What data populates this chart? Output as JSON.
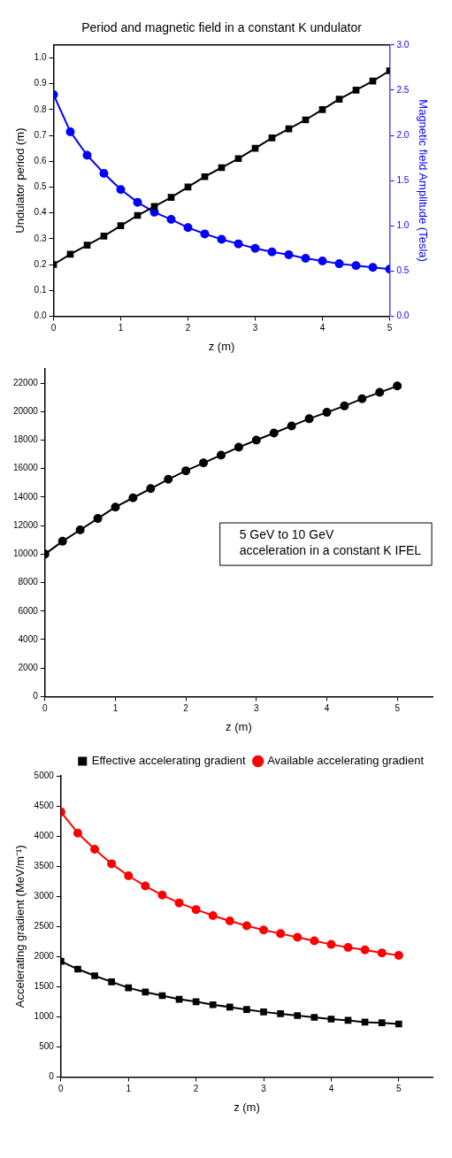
{
  "chart_data": [
    {
      "type": "line",
      "title": "Period and magnetic field in a constant K undulator",
      "xlabel": "z (m)",
      "ylabel": "Undulator period (m)",
      "y2label": "Magnetic field Amplitude (Tesla)",
      "x": [
        0,
        0.25,
        0.5,
        0.75,
        1,
        1.25,
        1.5,
        1.75,
        2,
        2.25,
        2.5,
        2.75,
        3,
        3.25,
        3.5,
        3.75,
        4,
        4.25,
        4.5,
        4.75,
        5
      ],
      "xlim": [
        0,
        5
      ],
      "xticks": [
        0,
        1,
        2,
        3,
        4,
        5
      ],
      "ylim": [
        0,
        1.05
      ],
      "yticks": [
        {
          "value": 0,
          "label": "0.0"
        },
        0.1,
        0.2,
        0.3,
        0.4,
        0.5,
        0.6,
        0.7,
        0.8,
        0.9,
        {
          "value": 1,
          "label": "1.0"
        }
      ],
      "y2lim": [
        0,
        3
      ],
      "y2ticks": [
        {
          "value": 0,
          "label": "0.0"
        },
        0.5,
        {
          "value": 1,
          "label": "1.0"
        },
        1.5,
        {
          "value": 2,
          "label": "2.0"
        },
        2.5,
        {
          "value": 3,
          "label": "3.0"
        }
      ],
      "grid": false,
      "legend": false,
      "series": [
        {
          "color": "#000000",
          "marker": "square",
          "values": [
            0.2,
            0.24,
            0.275,
            0.31,
            0.35,
            0.39,
            0.425,
            0.46,
            0.5,
            0.54,
            0.575,
            0.61,
            0.65,
            0.69,
            0.725,
            0.76,
            0.8,
            0.84,
            0.875,
            0.91,
            0.95
          ]
        },
        {
          "color": "#0000ff",
          "marker": "circle",
          "axis": "y2",
          "values": [
            2.45,
            2.04,
            1.78,
            1.58,
            1.4,
            1.26,
            1.15,
            1.07,
            0.98,
            0.91,
            0.85,
            0.8,
            0.75,
            0.71,
            0.68,
            0.64,
            0.61,
            0.58,
            0.56,
            0.54,
            0.52
          ]
        }
      ]
    },
    {
      "type": "line",
      "xlabel": "z (m)",
      "annotations": [
        "5 GeV to 10 GeV\nacceleration in a constant K IFEL"
      ],
      "x": [
        0,
        0.25,
        0.5,
        0.75,
        1,
        1.25,
        1.5,
        1.75,
        2,
        2.25,
        2.5,
        2.75,
        3,
        3.25,
        3.5,
        3.75,
        4,
        4.25,
        4.5,
        4.75,
        5
      ],
      "xlim": [
        0,
        5.5
      ],
      "xticks": [
        0,
        1,
        2,
        3,
        4,
        5
      ],
      "ylim": [
        0,
        23000
      ],
      "yticks": [
        0,
        2000,
        4000,
        6000,
        8000,
        10000,
        12000,
        14000,
        16000,
        18000,
        20000,
        22000
      ],
      "grid": false,
      "legend": false,
      "series": [
        {
          "color": "#000000",
          "marker": "circle",
          "values": [
            10000,
            10900,
            11700,
            12500,
            13300,
            13950,
            14600,
            15250,
            15850,
            16400,
            16950,
            17500,
            18000,
            18500,
            19000,
            19500,
            19950,
            20400,
            20900,
            21350,
            21800
          ]
        }
      ]
    },
    {
      "type": "line",
      "xlabel": "z (m)",
      "ylabel": "Accelerating gradient (MeV/m⁻¹)",
      "x": [
        0,
        0.25,
        0.5,
        0.75,
        1,
        1.25,
        1.5,
        1.75,
        2,
        2.25,
        2.5,
        2.75,
        3,
        3.25,
        3.5,
        3.75,
        4,
        4.25,
        4.5,
        4.75,
        5
      ],
      "xlim": [
        0,
        5.5
      ],
      "xticks": [
        0,
        1,
        2,
        3,
        4,
        5
      ],
      "ylim": [
        0,
        5000
      ],
      "yticks": [
        0,
        500,
        1000,
        1500,
        2000,
        2500,
        3000,
        3500,
        4000,
        4500,
        5000
      ],
      "grid": false,
      "legend": "top right",
      "series": [
        {
          "name": "Effective accelerating gradient",
          "color": "#000000",
          "marker": "square",
          "values": [
            1920,
            1790,
            1680,
            1580,
            1480,
            1410,
            1350,
            1290,
            1250,
            1200,
            1160,
            1120,
            1080,
            1050,
            1020,
            990,
            960,
            940,
            910,
            900,
            880
          ]
        },
        {
          "name": "Available accelerating gradient",
          "color": "#ff0000",
          "marker": "circle",
          "values": [
            4400,
            4050,
            3780,
            3540,
            3340,
            3170,
            3020,
            2890,
            2780,
            2680,
            2590,
            2510,
            2440,
            2380,
            2320,
            2260,
            2200,
            2150,
            2110,
            2060,
            2020
          ]
        }
      ]
    }
  ]
}
